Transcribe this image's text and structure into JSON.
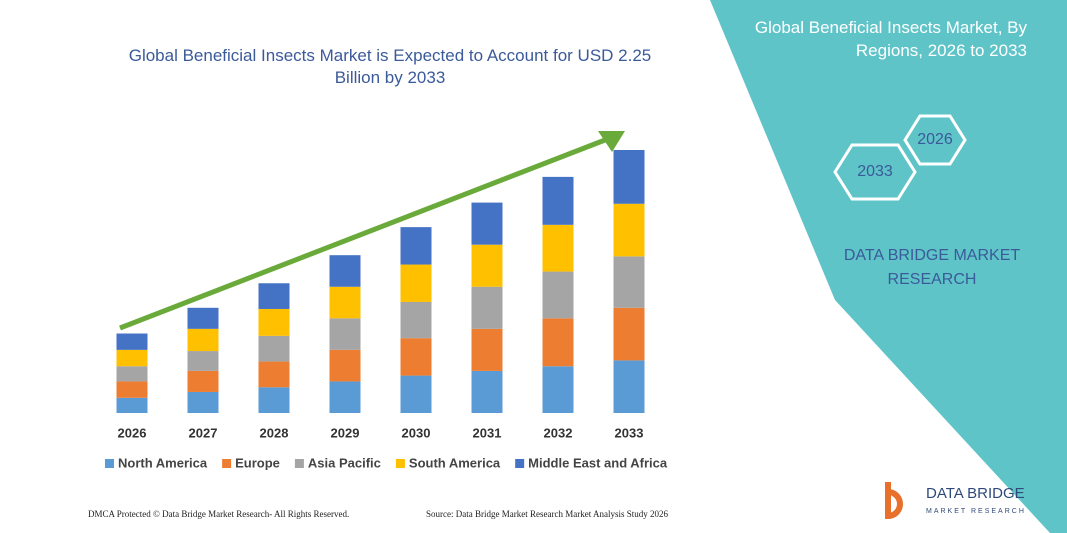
{
  "chart_data": {
    "type": "stacked_bar",
    "title": "Global Beneficial Insects Market is Expected to Account for USD 2.25 Billion by 2033",
    "categories": [
      "2026",
      "2027",
      "2028",
      "2029",
      "2030",
      "2031",
      "2032",
      "2033"
    ],
    "series": [
      {
        "name": "North America",
        "color": "#5b9bd5",
        "values": [
          0.13,
          0.18,
          0.22,
          0.27,
          0.32,
          0.36,
          0.4,
          0.45
        ]
      },
      {
        "name": "Europe",
        "color": "#ed7d31",
        "values": [
          0.14,
          0.18,
          0.22,
          0.27,
          0.32,
          0.36,
          0.41,
          0.45
        ]
      },
      {
        "name": "Asia Pacific",
        "color": "#a5a5a5",
        "values": [
          0.13,
          0.17,
          0.22,
          0.27,
          0.31,
          0.36,
          0.4,
          0.44
        ]
      },
      {
        "name": "South America",
        "color": "#ffc000",
        "values": [
          0.14,
          0.19,
          0.23,
          0.27,
          0.32,
          0.36,
          0.4,
          0.45
        ]
      },
      {
        "name": "Middle East and Africa",
        "color": "#4472c4",
        "values": [
          0.14,
          0.18,
          0.22,
          0.27,
          0.32,
          0.36,
          0.41,
          0.46
        ]
      }
    ]
  },
  "panel": {
    "title": "Global Beneficial Insects Market, By Regions, 2026 to 2033",
    "hex_start": "2026",
    "hex_end": "2033",
    "brand": "DATA BRIDGE MARKET RESEARCH"
  },
  "footer": {
    "left": "DMCA Protected © Data Bridge Market Research- All Rights Reserved.",
    "right": "Source: Data Bridge Market Research Market Analysis Study 2026"
  },
  "logo": {
    "name": "DATA BRIDGE",
    "tagline": "MARKET RESEARCH"
  }
}
